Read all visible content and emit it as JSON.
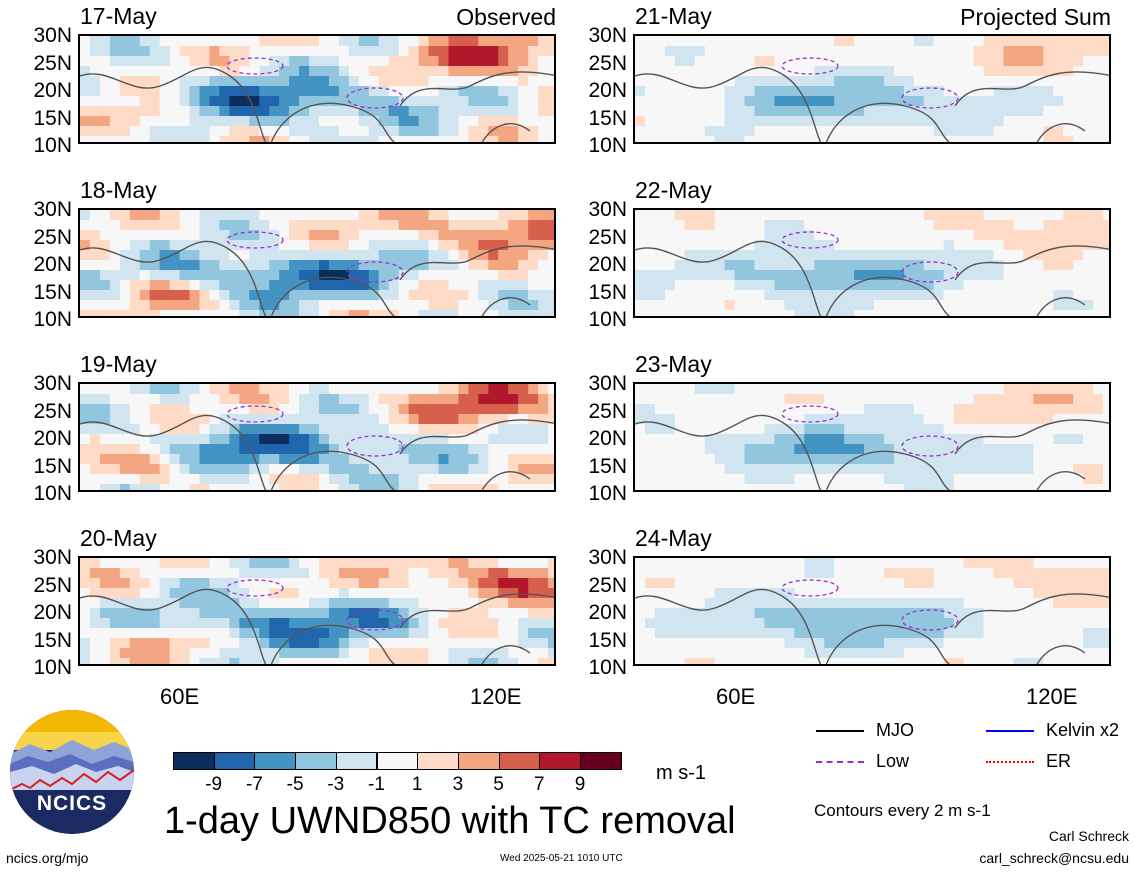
{
  "chart_data": {
    "type": "heatmap",
    "variable": "1-day UWND850 with TC removal",
    "units": "m s-1",
    "lat_ticks": [
      "30N",
      "25N",
      "20N",
      "15N",
      "10N"
    ],
    "lon_ticks": [
      "60E",
      "120E"
    ],
    "lon_range": [
      40,
      130
    ],
    "lat_range": [
      10,
      30
    ],
    "colorbar": {
      "levels": [
        -9,
        -7,
        -5,
        -3,
        -1,
        1,
        3,
        5,
        7,
        9
      ],
      "colors": [
        "#0b2e5c",
        "#2166ac",
        "#4393c3",
        "#92c5de",
        "#d1e5f0",
        "#f7f7f7",
        "#fddbc7",
        "#f4a582",
        "#d6604d",
        "#b2182b",
        "#67001f"
      ]
    },
    "columns": [
      {
        "heading": "Observed",
        "panels": [
          "17-May",
          "18-May",
          "19-May",
          "20-May"
        ]
      },
      {
        "heading": "Projected Sum",
        "panels": [
          "21-May",
          "22-May",
          "23-May",
          "24-May"
        ]
      }
    ]
  },
  "legend": {
    "mjo": {
      "label": "MJO",
      "color": "#000000"
    },
    "kelvin": {
      "label": "Kelvin x2",
      "color": "#0000ff"
    },
    "low": {
      "label": "Low",
      "color": "#9932cc"
    },
    "er": {
      "label": "ER",
      "color": "#ff0000"
    }
  },
  "contours_note": "Contours every 2 m s-1",
  "logo": {
    "text": "NCICS"
  },
  "footer": {
    "url": "ncics.org/mjo",
    "timestamp": "Wed 2025-05-21 1010 UTC",
    "author": "Carl Schreck",
    "email": "carl_schreck@ncsu.edu"
  }
}
